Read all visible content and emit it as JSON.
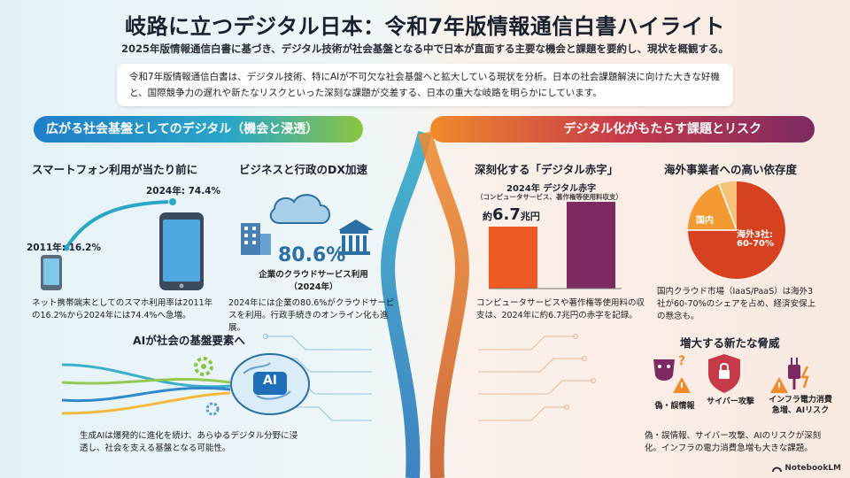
{
  "title": "岐路に立つデジタル日本：令和7年版情報通信白書ハイライト",
  "subtitle": "2025年版情報通信白書に基づき、デジタル技術が社会基盤となる中で日本が直面する主要な機会と課題を要約し、現状を概観する。",
  "summary": "令和7年版情報通信白書は、デジタル技術、特にAIが不可欠な社会基盤へと拡大している現状を分析。日本の社会課題解決に向けた大きな好機と、国際競争力の遅れや新たなリスクといった深刻な課題が交差する、日本の重大な岐路を明らかにしています。",
  "left": {
    "banner": "広がる社会基盤としてのデジタル（機会と浸透）",
    "smartphone": {
      "heading": "スマートフォン利用が当たり前に",
      "label_2011": "2011年: 16.2%",
      "label_2024": "2024年: 74.4%",
      "value_2011": 16.2,
      "value_2024": 74.4,
      "body": "ネット携帯端末としてのスマホ利用率は2011年の16.2%から2024年には74.4%へ急増。"
    },
    "dx": {
      "heading": "ビジネスと行政のDX加速",
      "pct": "80.6%",
      "caption": "企業のクラウドサービス利用",
      "year": "（2024年）",
      "body": "2024年には企業の80.6%がクラウドサービスを利用。行政手続きのオンライン化も進展。"
    },
    "ai": {
      "heading": "AIが社会の基盤要素へ",
      "chip": "AI",
      "body": "生成AIは爆発的に進化を続け、あらゆるデジタル分野に浸透し、社会を支える基盤となる可能性。"
    }
  },
  "right": {
    "banner": "デジタル化がもたらす課題とリスク",
    "deficit": {
      "heading": "深刻化する「デジタル赤字」",
      "chart_title": "2024年 デジタル赤字",
      "chart_sub": "（コンピュータサービス、著作権等使用料収支）",
      "amount_prefix": "約",
      "amount_num": "6.7",
      "amount_unit": "兆円",
      "body": "コンピュータサービスや著作権等使用料の収支は、2024年に約6.7兆円の赤字を記録。"
    },
    "dependence": {
      "heading": "海外事業者への高い依存度",
      "domestic": "国内",
      "foreign_line1": "海外3社:",
      "foreign_line2": "60-70%",
      "body": "国内クラウド市場（IaaS/PaaS）は海外3社が60-70%のシェアを占め、経済安保上の懸念も。"
    },
    "threats": {
      "heading": "増大する新たな脅威",
      "items": [
        "偽・誤情報",
        "サイバー攻撃",
        "インフラ電力消費\n急増、AIリスク"
      ],
      "body": "偽・誤情報、サイバー攻撃、AIのリスクが深刻化。インフラの電力消費急増も大きな課題。"
    }
  },
  "brand": "NotebookLM",
  "colors": {
    "left_accent": "#1f7dc9",
    "right_accent": "#c73a4a",
    "bar_orange": "#ee5a24",
    "bar_purple": "#7d2a62",
    "pie_red": "#d6411f",
    "pie_orange": "#f39a33"
  },
  "chart_data": [
    {
      "type": "line",
      "title": "",
      "x": [
        "2011年",
        "2024年"
      ],
      "series": [
        {
          "values": [
            16.2,
            74.4
          ]
        }
      ],
      "ylabel": ""
    },
    {
      "type": "bar",
      "title": "2024年 デジタル赤字",
      "subtitle": "（コンピュータサービス、著作権等使用料収支）",
      "categories": [
        "",
        ""
      ],
      "annotations": [
        "約6.7兆円"
      ]
    },
    {
      "type": "pie",
      "title": "",
      "slices": [
        {
          "label": "海外3社: 60-70%",
          "value": 65
        },
        {
          "label": "国内",
          "value": 35
        }
      ]
    }
  ]
}
